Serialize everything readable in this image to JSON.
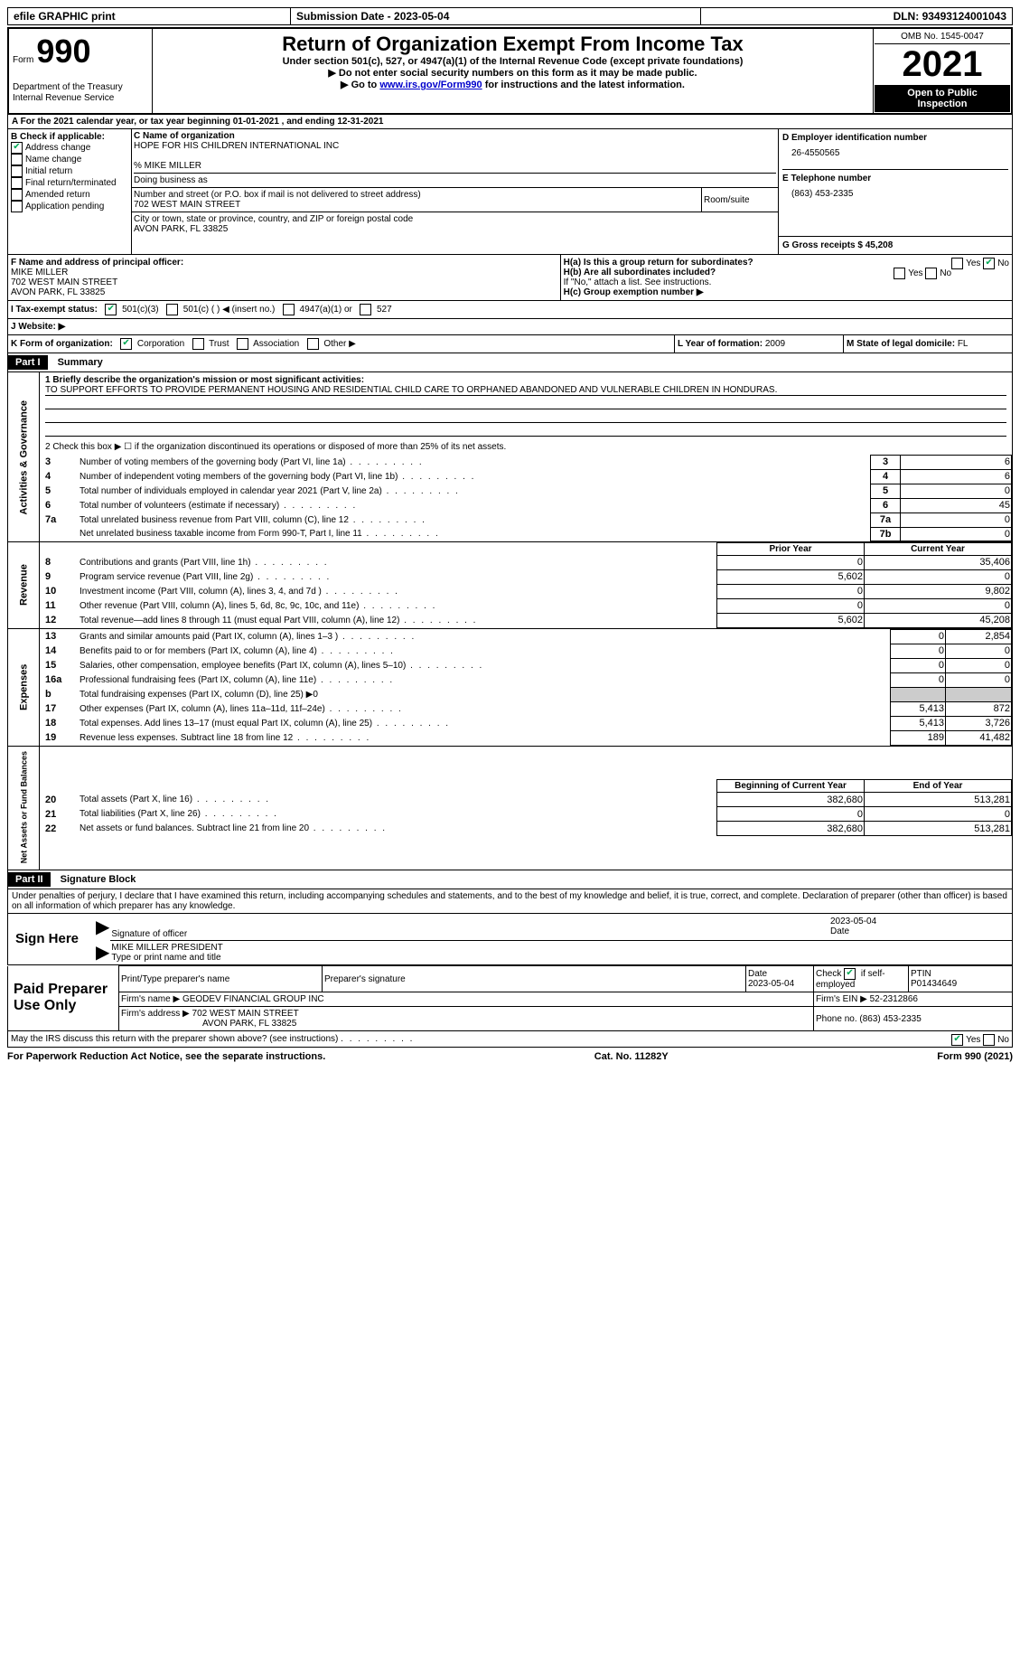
{
  "top": {
    "efile": "efile GRAPHIC print",
    "submission_label": "Submission Date - ",
    "submission_date": "2023-05-04",
    "dln_label": "DLN: ",
    "dln": "93493124001043"
  },
  "header": {
    "form_label": "Form",
    "form_number": "990",
    "dept": "Department of the Treasury\nInternal Revenue Service",
    "title": "Return of Organization Exempt From Income Tax",
    "subtitle": "Under section 501(c), 527, or 4947(a)(1) of the Internal Revenue Code (except private foundations)",
    "instr1": "▶ Do not enter social security numbers on this form as it may be made public.",
    "instr2_prefix": "▶ Go to ",
    "instr2_link": "www.irs.gov/Form990",
    "instr2_suffix": " for instructions and the latest information.",
    "omb": "OMB No. 1545-0047",
    "year": "2021",
    "open": "Open to Public Inspection"
  },
  "period": {
    "label": "A For the 2021 calendar year, or tax year beginning ",
    "begin": "01-01-2021",
    "mid": " , and ending ",
    "end": "12-31-2021"
  },
  "boxB": {
    "label": "B Check if applicable:",
    "opts": [
      "Address change",
      "Name change",
      "Initial return",
      "Final return/terminated",
      "Amended return",
      "Application pending"
    ],
    "checked_idx": 0
  },
  "boxC": {
    "name_label": "C Name of organization",
    "name": "HOPE FOR HIS CHILDREN INTERNATIONAL INC",
    "care_of": "% MIKE MILLER",
    "dba_label": "Doing business as",
    "addr_label": "Number and street (or P.O. box if mail is not delivered to street address)",
    "room_label": "Room/suite",
    "addr": "702 WEST MAIN STREET",
    "city_label": "City or town, state or province, country, and ZIP or foreign postal code",
    "city": "AVON PARK, FL  33825"
  },
  "boxD": {
    "label": "D Employer identification number",
    "val": "26-4550565"
  },
  "boxE": {
    "label": "E Telephone number",
    "val": "(863) 453-2335"
  },
  "boxG": {
    "label": "G Gross receipts $ ",
    "val": "45,208"
  },
  "boxF": {
    "label": "F Name and address of principal officer:",
    "name": "MIKE MILLER",
    "addr1": "702 WEST MAIN STREET",
    "addr2": "AVON PARK, FL  33825"
  },
  "boxH": {
    "a": "H(a)  Is this a group return for subordinates?",
    "b": "H(b)  Are all subordinates included?",
    "note": "If \"No,\" attach a list. See instructions.",
    "c": "H(c)  Group exemption number ▶"
  },
  "taxstatus": {
    "label": "I   Tax-exempt status:",
    "opts": [
      "501(c)(3)",
      "501(c) (  ) ◀ (insert no.)",
      "4947(a)(1) or",
      "527"
    ]
  },
  "website": {
    "label": "J   Website: ▶"
  },
  "boxK": {
    "label": "K Form of organization:",
    "opts": [
      "Corporation",
      "Trust",
      "Association",
      "Other ▶"
    ]
  },
  "boxL": {
    "label": "L Year of formation: ",
    "val": "2009"
  },
  "boxM": {
    "label": "M State of legal domicile: ",
    "val": "FL"
  },
  "part1": {
    "title": "Part I",
    "subtitle": "Summary",
    "q1_label": "1  Briefly describe the organization's mission or most significant activities:",
    "q1_text": "TO SUPPORT EFFORTS TO PROVIDE PERMANENT HOUSING AND RESIDENTIAL CHILD CARE TO ORPHANED ABANDONED AND VULNERABLE CHILDREN IN HONDURAS.",
    "q2": "2   Check this box ▶ ☐  if the organization discontinued its operations or disposed of more than 25% of its net assets.",
    "gov_label": "Activities & Governance",
    "rev_label": "Revenue",
    "exp_label": "Expenses",
    "net_label": "Net Assets or Fund Balances",
    "rows_gov": [
      {
        "n": "3",
        "t": "Number of voting members of the governing body (Part VI, line 1a)",
        "box": "3",
        "v": "6"
      },
      {
        "n": "4",
        "t": "Number of independent voting members of the governing body (Part VI, line 1b)",
        "box": "4",
        "v": "6"
      },
      {
        "n": "5",
        "t": "Total number of individuals employed in calendar year 2021 (Part V, line 2a)",
        "box": "5",
        "v": "0"
      },
      {
        "n": "6",
        "t": "Total number of volunteers (estimate if necessary)",
        "box": "6",
        "v": "45"
      },
      {
        "n": "7a",
        "t": "Total unrelated business revenue from Part VIII, column (C), line 12",
        "box": "7a",
        "v": "0"
      },
      {
        "n": "",
        "t": "Net unrelated business taxable income from Form 990-T, Part I, line 11",
        "box": "7b",
        "v": "0"
      }
    ],
    "prior_label": "Prior Year",
    "current_label": "Current Year",
    "beg_label": "Beginning of Current Year",
    "end_label": "End of Year",
    "rows_rev": [
      {
        "n": "8",
        "t": "Contributions and grants (Part VIII, line 1h)",
        "p": "0",
        "c": "35,406"
      },
      {
        "n": "9",
        "t": "Program service revenue (Part VIII, line 2g)",
        "p": "5,602",
        "c": "0"
      },
      {
        "n": "10",
        "t": "Investment income (Part VIII, column (A), lines 3, 4, and 7d )",
        "p": "0",
        "c": "9,802"
      },
      {
        "n": "11",
        "t": "Other revenue (Part VIII, column (A), lines 5, 6d, 8c, 9c, 10c, and 11e)",
        "p": "0",
        "c": "0"
      },
      {
        "n": "12",
        "t": "Total revenue—add lines 8 through 11 (must equal Part VIII, column (A), line 12)",
        "p": "5,602",
        "c": "45,208"
      }
    ],
    "rows_exp": [
      {
        "n": "13",
        "t": "Grants and similar amounts paid (Part IX, column (A), lines 1–3 )",
        "p": "0",
        "c": "2,854"
      },
      {
        "n": "14",
        "t": "Benefits paid to or for members (Part IX, column (A), line 4)",
        "p": "0",
        "c": "0"
      },
      {
        "n": "15",
        "t": "Salaries, other compensation, employee benefits (Part IX, column (A), lines 5–10)",
        "p": "0",
        "c": "0"
      },
      {
        "n": "16a",
        "t": "Professional fundraising fees (Part IX, column (A), line 11e)",
        "p": "0",
        "c": "0"
      },
      {
        "n": "b",
        "t": "Total fundraising expenses (Part IX, column (D), line 25) ▶0",
        "p": "",
        "c": "",
        "grey": true
      },
      {
        "n": "17",
        "t": "Other expenses (Part IX, column (A), lines 11a–11d, 11f–24e)",
        "p": "5,413",
        "c": "872"
      },
      {
        "n": "18",
        "t": "Total expenses. Add lines 13–17 (must equal Part IX, column (A), line 25)",
        "p": "5,413",
        "c": "3,726"
      },
      {
        "n": "19",
        "t": "Revenue less expenses. Subtract line 18 from line 12",
        "p": "189",
        "c": "41,482"
      }
    ],
    "rows_net": [
      {
        "n": "20",
        "t": "Total assets (Part X, line 16)",
        "p": "382,680",
        "c": "513,281"
      },
      {
        "n": "21",
        "t": "Total liabilities (Part X, line 26)",
        "p": "0",
        "c": "0"
      },
      {
        "n": "22",
        "t": "Net assets or fund balances. Subtract line 21 from line 20",
        "p": "382,680",
        "c": "513,281"
      }
    ]
  },
  "part2": {
    "title": "Part II",
    "subtitle": "Signature Block",
    "decl": "Under penalties of perjury, I declare that I have examined this return, including accompanying schedules and statements, and to the best of my knowledge and belief, it is true, correct, and complete. Declaration of preparer (other than officer) is based on all information of which preparer has any knowledge.",
    "sign_here": "Sign Here",
    "sig_officer": "Signature of officer",
    "sig_date": "2023-05-04",
    "officer_name": "MIKE MILLER  PRESIDENT",
    "officer_type": "Type or print name and title",
    "paid": "Paid Preparer Use Only",
    "prep_name_label": "Print/Type preparer's name",
    "prep_sig_label": "Preparer's signature",
    "date_label": "Date",
    "date_val": "2023-05-04",
    "check_label": "Check ☑ if self-employed",
    "ptin_label": "PTIN",
    "ptin": "P01434649",
    "firm_name_label": "Firm's name    ▶ ",
    "firm_name": "GEODEV FINANCIAL GROUP INC",
    "firm_ein_label": "Firm's EIN ▶ ",
    "firm_ein": "52-2312866",
    "firm_addr_label": "Firm's address ▶ ",
    "firm_addr1": "702 WEST MAIN STREET",
    "firm_addr2": "AVON PARK, FL  33825",
    "phone_label": "Phone no. ",
    "phone": "(863) 453-2335",
    "discuss": "May the IRS discuss this return with the preparer shown above? (see instructions)"
  },
  "footer": {
    "left": "For Paperwork Reduction Act Notice, see the separate instructions.",
    "mid": "Cat. No. 11282Y",
    "right": "Form 990 (2021)"
  }
}
